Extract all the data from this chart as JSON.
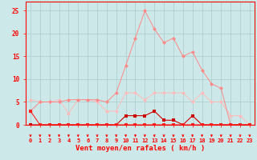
{
  "x": [
    0,
    1,
    2,
    3,
    4,
    5,
    6,
    7,
    8,
    9,
    10,
    11,
    12,
    13,
    14,
    15,
    16,
    17,
    18,
    19,
    20,
    21,
    22,
    23
  ],
  "line1": [
    3,
    0,
    0,
    0,
    0,
    0,
    0,
    0,
    0,
    0,
    0,
    0,
    0,
    0,
    0,
    0,
    0,
    0,
    0,
    0,
    0,
    0,
    0,
    0
  ],
  "line2": [
    0,
    0,
    0,
    0,
    0,
    0,
    0,
    0,
    0,
    0,
    2,
    2,
    2,
    3,
    1,
    1,
    0,
    2,
    0,
    0,
    0,
    0,
    0,
    0
  ],
  "line3": [
    5.5,
    5,
    5,
    5.5,
    2.5,
    5.5,
    5.5,
    5,
    3,
    3,
    7,
    7,
    5.5,
    7,
    7,
    7,
    7,
    5,
    7,
    5,
    5,
    2,
    2,
    0
  ],
  "line4": [
    3,
    5,
    5,
    5,
    5.5,
    5.5,
    5.5,
    5.5,
    5,
    7,
    13,
    19,
    25,
    21,
    18,
    19,
    15,
    16,
    12,
    9,
    8,
    0,
    0,
    0
  ],
  "bg_color": "#cce8e8",
  "grid_color": "#aacccc",
  "line1_color": "#ff2222",
  "line2_color": "#cc0000",
  "line3_color": "#ffbbbb",
  "line4_color": "#ff8888",
  "xlabel": "Vent moyen/en rafales ( km/h )",
  "ylim": [
    0,
    27
  ],
  "xlim": [
    -0.5,
    23.5
  ],
  "yticks": [
    0,
    5,
    10,
    15,
    20,
    25
  ],
  "xticks": [
    0,
    1,
    2,
    3,
    4,
    5,
    6,
    7,
    8,
    9,
    10,
    11,
    12,
    13,
    14,
    15,
    16,
    17,
    18,
    19,
    20,
    21,
    22,
    23
  ]
}
